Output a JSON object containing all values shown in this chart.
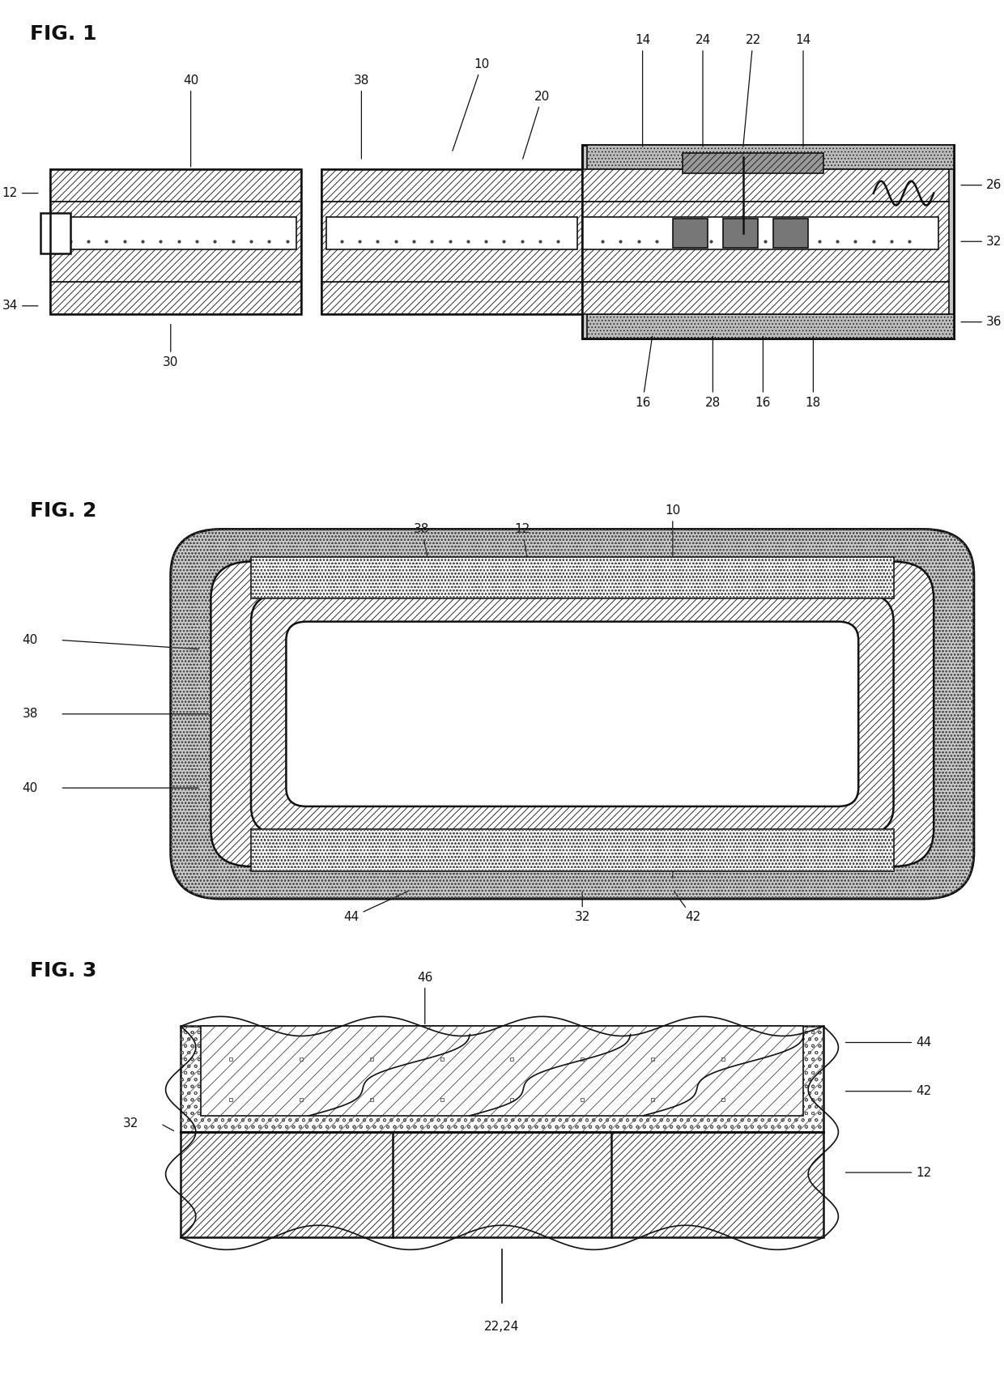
{
  "bg_color": "#ffffff",
  "line_color": "#111111",
  "fig1_label": "FIG. 1",
  "fig2_label": "FIG. 2",
  "fig3_label": "FIG. 3",
  "label_fontsize": 18,
  "ann_fontsize": 11
}
